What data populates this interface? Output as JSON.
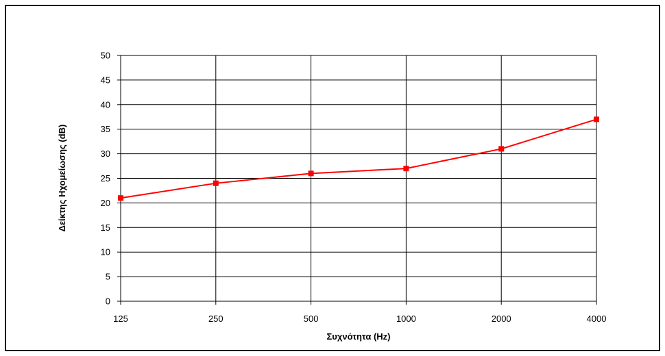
{
  "chart_data": {
    "type": "line",
    "title": "",
    "xlabel": "Συχνότητα (Hz)",
    "ylabel": "Δείκτης Ηχομείωσης (dB)",
    "categories": [
      "125",
      "250",
      "500",
      "1000",
      "2000",
      "4000"
    ],
    "series": [
      {
        "values": [
          21,
          24,
          26,
          27,
          31,
          37
        ],
        "color": "#ff0000",
        "marker": "square"
      }
    ],
    "ylim": [
      0,
      50
    ],
    "yticks": [
      "0",
      "5",
      "10",
      "15",
      "20",
      "25",
      "30",
      "35",
      "40",
      "45",
      "50"
    ],
    "grid": true,
    "legend": "none",
    "colors": {
      "line": "#ff0000",
      "marker": "#ff0000",
      "grid": "#000000",
      "frame": "#000000"
    }
  }
}
